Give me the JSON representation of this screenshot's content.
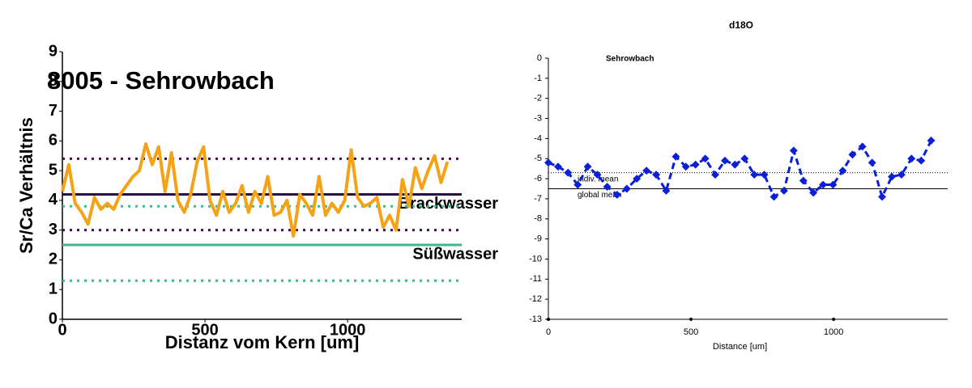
{
  "chart_data": [
    {
      "type": "line",
      "title": "8005 - Sehrowbach",
      "x_label": "Distanz vom Kern [um]",
      "y_label": "Sr/Ca Verhältnis",
      "xlim": [
        0,
        1400
      ],
      "ylim": [
        0,
        9
      ],
      "xticks": [
        0,
        500,
        1000
      ],
      "yticks": [
        0,
        1,
        2,
        3,
        4,
        5,
        6,
        7,
        8,
        9
      ],
      "x": [
        0,
        22.5,
        45,
        67.5,
        90,
        112.5,
        135,
        157.5,
        180,
        202.5,
        225,
        247.5,
        270,
        292.5,
        315,
        337.5,
        360,
        382.5,
        405,
        427.5,
        450,
        472.5,
        495,
        517.5,
        540,
        562.5,
        585,
        607.5,
        630,
        652.5,
        675,
        697.5,
        720,
        742.5,
        765,
        787.5,
        810,
        832.5,
        855,
        877.5,
        900,
        922.5,
        945,
        967.5,
        990,
        1012.5,
        1035,
        1057.5,
        1080,
        1102.5,
        1125,
        1147.5,
        1170,
        1192.5,
        1215,
        1237.5,
        1260,
        1282.5,
        1305,
        1327.5,
        1350
      ],
      "series": [
        {
          "color": "#f5a316",
          "line_style": "solid",
          "values": [
            4.3,
            5.2,
            3.9,
            3.6,
            3.2,
            4.1,
            3.7,
            3.9,
            3.7,
            4.2,
            4.5,
            4.8,
            5.0,
            5.9,
            5.2,
            5.8,
            4.3,
            5.6,
            4.0,
            3.6,
            4.2,
            5.3,
            5.8,
            4.0,
            3.5,
            4.3,
            3.6,
            3.9,
            4.5,
            3.6,
            4.3,
            3.9,
            4.8,
            3.5,
            3.6,
            4.0,
            2.8,
            4.2,
            3.9,
            3.5,
            4.8,
            3.5,
            3.9,
            3.6,
            4.0,
            5.7,
            4.1,
            3.8,
            3.9,
            4.1,
            3.1,
            3.5,
            3.0,
            4.7,
            3.8,
            5.1,
            4.4,
            5.0,
            5.5,
            4.6,
            5.3
          ]
        }
      ],
      "reference_lines": [
        {
          "value": 5.4,
          "color": "#4b0a4f",
          "style": "dotted"
        },
        {
          "value": 4.2,
          "color": "#2e0a45",
          "style": "solid",
          "label": "Brackwasser"
        },
        {
          "value": 3.8,
          "color": "#3cb98c",
          "style": "dotted"
        },
        {
          "value": 3.0,
          "color": "#4b0a4f",
          "style": "dotted"
        },
        {
          "value": 2.5,
          "color": "#3cb98c",
          "style": "solid",
          "label": "Süßwasser"
        },
        {
          "value": 1.3,
          "color": "#3cb98c",
          "style": "dotted"
        }
      ]
    },
    {
      "type": "line",
      "title": "d18O",
      "subtitle": "Sehrowbach",
      "x_label": "Distance [um]",
      "xlim": [
        0,
        1400
      ],
      "ylim": [
        -13,
        0
      ],
      "xticks": [
        0,
        500,
        1000
      ],
      "yticks": [
        0,
        -1,
        -2,
        -3,
        -4,
        -5,
        -6,
        -7,
        -8,
        -9,
        -10,
        -11,
        -12,
        -13
      ],
      "x": [
        0,
        34,
        69,
        103,
        138,
        172,
        206,
        241,
        275,
        310,
        344,
        378,
        413,
        447,
        482,
        516,
        550,
        585,
        619,
        654,
        688,
        722,
        757,
        791,
        826,
        860,
        894,
        929,
        963,
        998,
        1032,
        1066,
        1101,
        1135,
        1170,
        1204,
        1238,
        1273,
        1307,
        1342
      ],
      "series": [
        {
          "color": "#0a1fd6",
          "line_style": "dashed",
          "markers": true,
          "values": [
            -5.2,
            -5.4,
            -5.7,
            -6.3,
            -5.4,
            -5.8,
            -6.4,
            -6.8,
            -6.5,
            -6.0,
            -5.6,
            -5.8,
            -6.6,
            -4.9,
            -5.4,
            -5.3,
            -5.0,
            -5.8,
            -5.1,
            -5.3,
            -5.0,
            -5.8,
            -5.8,
            -6.9,
            -6.6,
            -4.6,
            -6.1,
            -6.7,
            -6.3,
            -6.3,
            -5.6,
            -4.8,
            -4.4,
            -5.2,
            -6.9,
            -5.9,
            -5.8,
            -5.0,
            -5.1,
            -4.1
          ]
        }
      ],
      "reference_lines": [
        {
          "value": -5.7,
          "color": "#000000",
          "style": "dotted",
          "label": "indiv. mean"
        },
        {
          "value": -6.5,
          "color": "#000000",
          "style": "solid",
          "label": "global mean"
        }
      ]
    }
  ]
}
